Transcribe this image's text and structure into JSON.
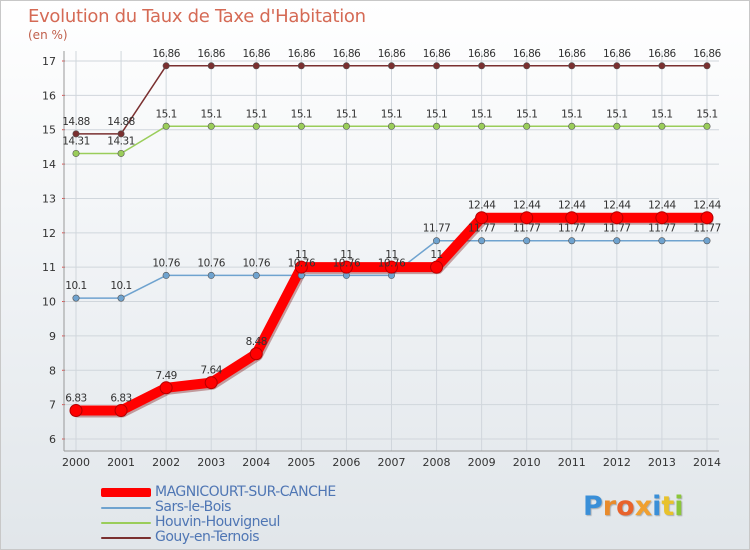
{
  "header": {
    "title": "Evolution du Taux de Taxe d'Habitation",
    "unit": "(en %)"
  },
  "logo": {
    "text": "Proxiti"
  },
  "colors": {
    "magnicourt": "#ff0000",
    "sars": "#6fa3cf",
    "houvin": "#9acd5a",
    "gouy": "#7a3030",
    "axis_text": "#333333",
    "grid": "#d0d6dc"
  },
  "chart_data": {
    "type": "line",
    "title": "Evolution du Taux de Taxe d'Habitation",
    "ylabel": "(en %)",
    "xlabel": "",
    "ylim": [
      6,
      17
    ],
    "yticks": [
      "6",
      "7",
      "8",
      "9",
      "10",
      "11",
      "12",
      "13",
      "14",
      "15",
      "16",
      "17"
    ],
    "categories": [
      "2000",
      "2001",
      "2002",
      "2003",
      "2004",
      "2005",
      "2006",
      "2007",
      "2008",
      "2009",
      "2010",
      "2011",
      "2012",
      "2013",
      "2014"
    ],
    "series": [
      {
        "name": "MAGNICOURT-SUR-CANCHE",
        "key": "magnicourt",
        "values": [
          6.83,
          6.83,
          7.49,
          7.64,
          8.48,
          11,
          11,
          11,
          11,
          12.44,
          12.44,
          12.44,
          12.44,
          12.44,
          12.44
        ],
        "labels": [
          "6.83",
          "6.83",
          "7.49",
          "7.64",
          "8.48",
          "11",
          "11",
          "11",
          "11",
          "12.44",
          "12.44",
          "12.44",
          "12.44",
          "12.44",
          "12.44"
        ]
      },
      {
        "name": "Sars-le-Bois",
        "key": "sars",
        "values": [
          10.1,
          10.1,
          10.76,
          10.76,
          10.76,
          10.76,
          10.76,
          10.76,
          11.77,
          11.77,
          11.77,
          11.77,
          11.77,
          11.77,
          11.77
        ],
        "labels": [
          "10.1",
          "10.1",
          "10.76",
          "10.76",
          "10.76",
          "10.76",
          "10.76",
          "10.76",
          "11.77",
          "11.77",
          "11.77",
          "11.77",
          "11.77",
          "11.77",
          "11.77"
        ]
      },
      {
        "name": "Houvin-Houvigneul",
        "key": "houvin",
        "values": [
          14.31,
          14.31,
          15.1,
          15.1,
          15.1,
          15.1,
          15.1,
          15.1,
          15.1,
          15.1,
          15.1,
          15.1,
          15.1,
          15.1,
          15.1
        ],
        "labels": [
          "14.31",
          "14.31",
          "15.1",
          "15.1",
          "15.1",
          "15.1",
          "15.1",
          "15.1",
          "15.1",
          "15.1",
          "15.1",
          "15.1",
          "15.1",
          "15.1",
          "15.1"
        ]
      },
      {
        "name": "Gouy-en-Ternois",
        "key": "gouy",
        "values": [
          14.88,
          14.88,
          16.86,
          16.86,
          16.86,
          16.86,
          16.86,
          16.86,
          16.86,
          16.86,
          16.86,
          16.86,
          16.86,
          16.86,
          16.86
        ],
        "labels": [
          "14.88",
          "14.88",
          "16.86",
          "16.86",
          "16.86",
          "16.86",
          "16.86",
          "16.86",
          "16.86",
          "16.86",
          "16.86",
          "16.86",
          "16.86",
          "16.86",
          "16.86"
        ]
      }
    ]
  }
}
